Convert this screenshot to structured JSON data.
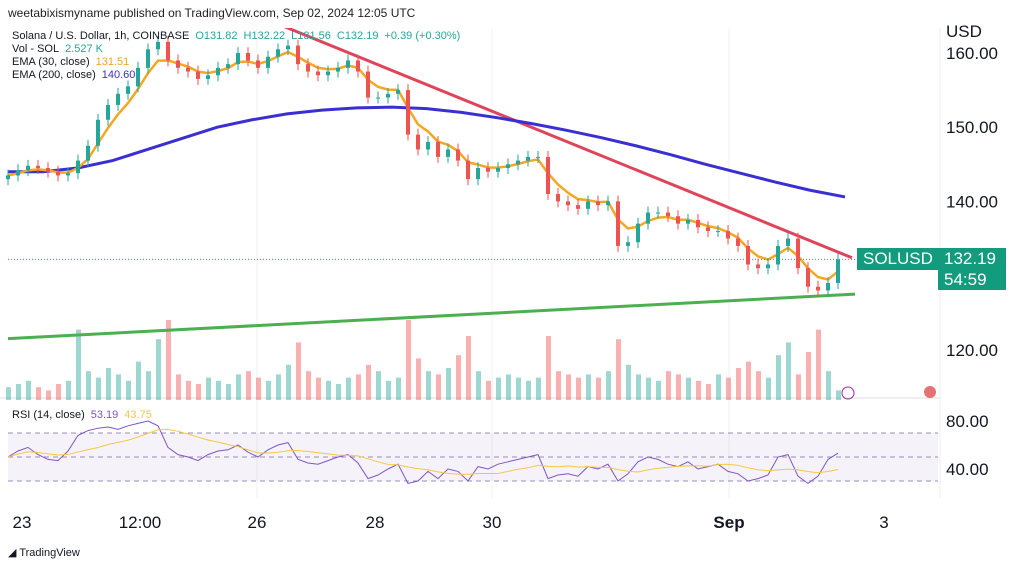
{
  "header": {
    "published": "weetabixismyname published on TradingView.com, Sep 02, 2024 12:05 UTC"
  },
  "legend": {
    "symbol": "Solana / U.S. Dollar, 1h, COINBASE",
    "open": "O131.82",
    "high": "H132.22",
    "low": "L131.56",
    "close": "C132.19",
    "change": "+0.39 (+0.30%)",
    "vol_label": "Vol - SOL",
    "vol_value": "2.527 K",
    "ema30_label": "EMA (30, close)",
    "ema30_value": "131.51",
    "ema200_label": "EMA (200, close)",
    "ema200_value": "140.60",
    "rsi_label": "RSI (14, close)",
    "rsi_value": "53.19",
    "rsi_ma_value": "43.75"
  },
  "colors": {
    "up": "#26a69a",
    "down": "#ef5350",
    "ema30": "#f5a623",
    "ema200": "#3a2fd1",
    "resistance": "#e0445a",
    "support": "#4caf50",
    "rsi": "#7e57c2",
    "tag": "#139b7e"
  },
  "price_tag": {
    "symbol": "SOLUSD",
    "price": "132.19",
    "countdown": "54:59"
  },
  "footer": {
    "brand": "TradingView"
  },
  "chart_data": {
    "type": "candlestick",
    "currency": "USD",
    "y_ticks": [
      "160.00",
      "150.00",
      "140.00",
      "120.00"
    ],
    "rsi_ticks": [
      "80.00",
      "40.00"
    ],
    "x_ticks": [
      "23",
      "12:00",
      "26",
      "28",
      "30",
      "Sep",
      "3"
    ],
    "ylim": [
      113,
      167
    ],
    "closes": [
      143.5,
      144.2,
      144.8,
      144.5,
      144,
      143.5,
      143.8,
      145.5,
      147.5,
      151,
      153,
      154.5,
      155.5,
      158,
      160.5,
      161.5,
      159,
      158,
      157.5,
      156.5,
      157,
      158,
      158.5,
      160,
      159,
      158,
      159.5,
      160.5,
      161,
      158.5,
      157.5,
      157,
      157.5,
      158,
      159,
      157.5,
      154,
      154,
      154.5,
      155,
      149,
      147,
      148,
      146,
      147,
      145.5,
      143,
      144.5,
      144,
      144.5,
      145,
      145.5,
      146,
      146,
      141,
      140,
      139.5,
      139,
      140,
      139.5,
      140,
      134,
      134.5,
      137,
      138.5,
      138.5,
      138,
      137,
      137.5,
      136.5,
      136,
      136,
      135,
      134,
      131.5,
      131,
      131.5,
      134,
      135,
      131,
      128.5,
      128,
      129,
      132.19
    ],
    "ema200": [
      144,
      144,
      144.5,
      145.5,
      147,
      148.5,
      150,
      151,
      151.8,
      152.3,
      152.6,
      152.7,
      152.5,
      152,
      151.3,
      150.5,
      149.6,
      148.6,
      147.5,
      146.3,
      145,
      143.8,
      142.6,
      141.5,
      140.6
    ],
    "volume_k": [
      4,
      5,
      6,
      4,
      3,
      5,
      6,
      22,
      9,
      7,
      10,
      8,
      6,
      12,
      9,
      19,
      25,
      8,
      6,
      5,
      7,
      6,
      5,
      8,
      9,
      7,
      6,
      8,
      11,
      18,
      9,
      7,
      6,
      5,
      7,
      8,
      11,
      9,
      6,
      7,
      25,
      13,
      9,
      8,
      10,
      14,
      20,
      9,
      6,
      7,
      8,
      7,
      6,
      7,
      20,
      9,
      8,
      7,
      8,
      7,
      9,
      19,
      11,
      8,
      7,
      6,
      9,
      8,
      7,
      6,
      5,
      8,
      7,
      10,
      12,
      9,
      7,
      14,
      18,
      8,
      15,
      22,
      9,
      3
    ],
    "rsi": [
      50,
      55,
      58,
      52,
      48,
      47,
      55,
      68,
      72,
      74,
      75,
      73,
      76,
      78,
      80,
      76,
      58,
      52,
      50,
      47,
      52,
      55,
      56,
      60,
      54,
      50,
      56,
      60,
      62,
      48,
      45,
      44,
      47,
      50,
      52,
      45,
      32,
      35,
      40,
      44,
      28,
      30,
      38,
      32,
      40,
      38,
      30,
      42,
      40,
      44,
      46,
      48,
      50,
      52,
      32,
      35,
      36,
      34,
      42,
      40,
      44,
      30,
      36,
      46,
      50,
      48,
      44,
      42,
      46,
      40,
      42,
      44,
      38,
      36,
      30,
      32,
      35,
      50,
      52,
      34,
      28,
      34,
      48,
      53.19
    ],
    "resistance": [
      [
        163.8
      ],
      [
        132.4
      ]
    ],
    "support": [
      [
        121.5
      ],
      [
        127.5
      ]
    ]
  }
}
